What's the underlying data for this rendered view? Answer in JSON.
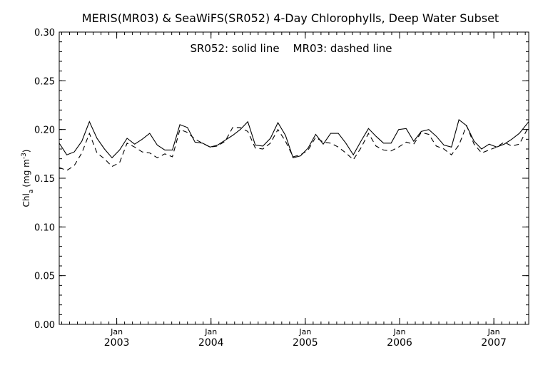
{
  "chart_data": {
    "type": "line",
    "title": "MERIS(MR03) & SeaWiFS(SR052) 4-Day Chlorophylls, Deep Water Subset",
    "annotation": "SR052: solid line    MR03: dashed line",
    "ylabel": "Chl",
    "ylabel_subscript": "a",
    "ylabel_unit_prefix": "(mg m",
    "ylabel_unit_exponent": "-3",
    "ylabel_unit_suffix": ")",
    "ylim": [
      0.0,
      0.3
    ],
    "yticks": [
      "0.00",
      "0.05",
      "0.10",
      "0.15",
      "0.20",
      "0.25",
      "0.30"
    ],
    "ytick_values": [
      0.0,
      0.05,
      0.1,
      0.15,
      0.2,
      0.25,
      0.3
    ],
    "xlim": [
      2002.39,
      2007.37
    ],
    "xticks": [
      {
        "value": 2003.0,
        "month": "Jan",
        "year": "2003"
      },
      {
        "value": 2004.0,
        "month": "Jan",
        "year": "2004"
      },
      {
        "value": 2005.0,
        "month": "Jan",
        "year": "2005"
      },
      {
        "value": 2006.0,
        "month": "Jan",
        "year": "2006"
      },
      {
        "value": 2007.0,
        "month": "Jan",
        "year": "2007"
      }
    ],
    "grid": false,
    "legend": "none",
    "series": [
      {
        "style": "solid",
        "x": [
          2002.39,
          2002.47,
          2002.55,
          2002.63,
          2002.71,
          2002.79,
          2002.87,
          2002.95,
          2003.03,
          2003.11,
          2003.19,
          2003.27,
          2003.35,
          2003.43,
          2003.51,
          2003.59,
          2003.67,
          2003.75,
          2003.83,
          2003.91,
          2003.99,
          2004.07,
          2004.15,
          2004.23,
          2004.31,
          2004.39,
          2004.47,
          2004.55,
          2004.63,
          2004.71,
          2004.79,
          2004.87,
          2004.95,
          2005.03,
          2005.11,
          2005.19,
          2005.27,
          2005.35,
          2005.43,
          2005.51,
          2005.59,
          2005.67,
          2005.75,
          2005.83,
          2005.91,
          2005.99,
          2006.07,
          2006.15,
          2006.23,
          2006.31,
          2006.39,
          2006.47,
          2006.55,
          2006.63,
          2006.71,
          2006.79,
          2006.87,
          2006.95,
          2007.03,
          2007.11,
          2007.19,
          2007.27,
          2007.37
        ],
        "y": [
          0.186,
          0.174,
          0.177,
          0.188,
          0.208,
          0.191,
          0.18,
          0.171,
          0.179,
          0.191,
          0.185,
          0.19,
          0.196,
          0.184,
          0.179,
          0.179,
          0.205,
          0.202,
          0.187,
          0.186,
          0.182,
          0.184,
          0.189,
          0.194,
          0.2,
          0.208,
          0.184,
          0.183,
          0.191,
          0.207,
          0.194,
          0.171,
          0.173,
          0.181,
          0.195,
          0.185,
          0.196,
          0.196,
          0.186,
          0.174,
          0.188,
          0.201,
          0.193,
          0.186,
          0.186,
          0.2,
          0.201,
          0.188,
          0.198,
          0.2,
          0.193,
          0.184,
          0.182,
          0.21,
          0.204,
          0.188,
          0.18,
          0.185,
          0.182,
          0.185,
          0.19,
          0.196,
          0.208
        ]
      },
      {
        "style": "dashed",
        "x": [
          2002.39,
          2002.47,
          2002.55,
          2002.63,
          2002.71,
          2002.79,
          2002.87,
          2002.95,
          2003.03,
          2003.11,
          2003.19,
          2003.27,
          2003.35,
          2003.43,
          2003.51,
          2003.59,
          2003.67,
          2003.75,
          2003.83,
          2003.91,
          2003.99,
          2004.07,
          2004.15,
          2004.23,
          2004.31,
          2004.39,
          2004.47,
          2004.55,
          2004.63,
          2004.71,
          2004.79,
          2004.87,
          2004.95,
          2005.03,
          2005.11,
          2005.19,
          2005.27,
          2005.35,
          2005.43,
          2005.51,
          2005.59,
          2005.67,
          2005.75,
          2005.83,
          2005.91,
          2005.99,
          2006.07,
          2006.15,
          2006.23,
          2006.31,
          2006.39,
          2006.47,
          2006.55,
          2006.63,
          2006.71,
          2006.79,
          2006.87,
          2006.95,
          2007.03,
          2007.11,
          2007.19,
          2007.27,
          2007.37
        ],
        "y": [
          0.161,
          0.158,
          0.163,
          0.176,
          0.196,
          0.176,
          0.17,
          0.162,
          0.166,
          0.186,
          0.182,
          0.177,
          0.176,
          0.171,
          0.175,
          0.172,
          0.2,
          0.197,
          0.19,
          0.186,
          0.182,
          0.183,
          0.188,
          0.202,
          0.202,
          0.198,
          0.181,
          0.18,
          0.186,
          0.2,
          0.188,
          0.172,
          0.174,
          0.179,
          0.192,
          0.187,
          0.186,
          0.182,
          0.176,
          0.169,
          0.181,
          0.196,
          0.183,
          0.179,
          0.178,
          0.182,
          0.187,
          0.185,
          0.197,
          0.195,
          0.183,
          0.18,
          0.174,
          0.184,
          0.204,
          0.185,
          0.176,
          0.179,
          0.182,
          0.187,
          0.183,
          0.185,
          0.203
        ]
      }
    ]
  }
}
